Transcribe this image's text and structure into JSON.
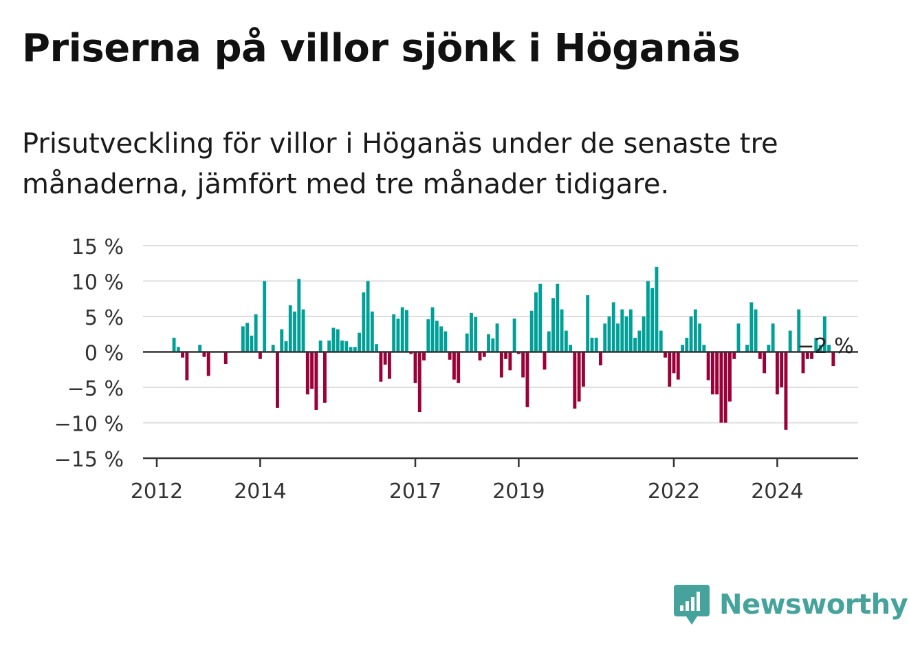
{
  "title": "Priserna på villor sjönk i Höganäs",
  "subtitle": "Prisutveckling för villor i Höganäs under de senaste tre månaderna, jämfört med tre månader tidigare.",
  "brand": {
    "name": "Newsworthy",
    "icon": "newsworthy-logo-icon",
    "color": "#45a39c"
  },
  "chart_data": {
    "type": "bar",
    "ylim": [
      -15,
      15
    ],
    "yticks": [
      15,
      10,
      5,
      0,
      -5,
      -10,
      -15
    ],
    "ytick_labels": [
      "15 %",
      "10 %",
      "5 %",
      "0 %",
      "−5 %",
      "−10 %",
      "−15 %"
    ],
    "xticks": [
      2012,
      2014,
      2017,
      2019,
      2022,
      2024
    ],
    "xtick_labels": [
      "2012",
      "2014",
      "2017",
      "2019",
      "2022",
      "2024"
    ],
    "x_start": 2012,
    "bars_per_year": 12,
    "grid": true,
    "colors": {
      "positive": "#00a098",
      "negative": "#9b0038",
      "grid": "#dddddd",
      "axis": "#333333"
    },
    "annotation": {
      "text": "−2 %",
      "index": 155
    },
    "values": [
      null,
      null,
      null,
      null,
      2,
      0.7,
      -0.8,
      -4,
      null,
      null,
      1,
      -0.7,
      -3.4,
      null,
      null,
      null,
      -1.7,
      null,
      null,
      null,
      3.6,
      4.1,
      2.3,
      5.3,
      -1,
      10,
      null,
      1,
      -7.9,
      3.2,
      1.5,
      6.6,
      5.7,
      10.3,
      6,
      -6,
      -5.2,
      -8.2,
      1.6,
      -7.2,
      1.6,
      3.4,
      3.2,
      1.6,
      1.5,
      0.7,
      0.7,
      2.7,
      8.4,
      10,
      5.7,
      1.1,
      -4.2,
      -1.8,
      -3.8,
      5.3,
      4.7,
      6.3,
      5.9,
      -0.3,
      -4.4,
      -8.5,
      -1.2,
      4.6,
      6.3,
      4.4,
      3.6,
      2.9,
      -1.1,
      -3.9,
      -4.4,
      null,
      2.6,
      5.5,
      4.9,
      -1.2,
      -0.7,
      2.5,
      1.9,
      4,
      -3.6,
      -1,
      -2.6,
      4.7,
      -0.3,
      -3.6,
      -7.8,
      5.8,
      8.4,
      9.6,
      -2.5,
      2.9,
      7.6,
      9.6,
      6,
      3,
      1,
      -8,
      -7,
      -4.9,
      8,
      2,
      2,
      -1.9,
      4,
      5,
      7,
      4,
      6,
      5,
      6,
      2,
      3,
      5,
      10,
      9,
      12,
      3,
      -0.8,
      -4.9,
      -3,
      -3.9,
      1,
      2,
      5,
      6,
      4,
      1,
      -4,
      -6,
      -6,
      -10,
      -10,
      -7,
      -1,
      4,
      null,
      1,
      7,
      6,
      -1,
      -3,
      1,
      4,
      -6,
      -5,
      -11,
      3,
      null,
      6,
      -3,
      -1,
      -1,
      2,
      1,
      5,
      1,
      -2
    ]
  }
}
